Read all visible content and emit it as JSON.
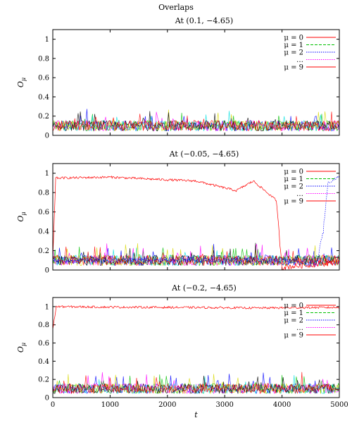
{
  "figure": {
    "title": "Overlaps"
  },
  "chart_data": [
    {
      "type": "line",
      "title": "At (0.1, −4.65)",
      "xlabel": "",
      "ylabel": "Oμ",
      "xlim": [
        0,
        5000
      ],
      "ylim": [
        0,
        1.1
      ],
      "yticks": [
        "0",
        "0.2",
        "0.4",
        "0.6",
        "0.8",
        "1"
      ],
      "xticks": [],
      "legend": "top-right",
      "series": [
        {
          "name": "μ = 0",
          "color": "#ff0000",
          "dash": "solid",
          "description_points": [
            [
              0,
              0.1
            ],
            [
              1000,
              0.1
            ],
            [
              2000,
              0.1
            ],
            [
              3000,
              0.1
            ],
            [
              4000,
              0.1
            ],
            [
              5000,
              0.1
            ]
          ]
        },
        {
          "name": "μ = 1",
          "color": "#00c000",
          "dash": "dashed",
          "description_points": [
            [
              0,
              0.1
            ],
            [
              2500,
              0.1
            ],
            [
              5000,
              0.1
            ]
          ]
        },
        {
          "name": "μ = 2",
          "color": "#0000ff",
          "dash": "dotted",
          "description_points": [
            [
              0,
              0.1
            ],
            [
              2500,
              0.1
            ],
            [
              5000,
              0.1
            ]
          ]
        },
        {
          "name": "…",
          "color": "#ff00ff",
          "dash": "dotted",
          "description_points": [
            [
              0,
              0.1
            ],
            [
              2500,
              0.1
            ],
            [
              5000,
              0.1
            ]
          ]
        },
        {
          "name": "μ = 9",
          "color": "#ff0000",
          "dash": "solid",
          "description_points": [
            [
              0,
              0.1
            ],
            [
              2500,
              0.1
            ],
            [
              5000,
              0.1
            ]
          ]
        }
      ]
    },
    {
      "type": "line",
      "title": "At (−0.05, −4.65)",
      "xlabel": "",
      "ylabel": "Oμ",
      "xlim": [
        0,
        5000
      ],
      "ylim": [
        0,
        1.1
      ],
      "yticks": [
        "0",
        "0.2",
        "0.4",
        "0.6",
        "0.8",
        "1"
      ],
      "xticks": [],
      "legend": "top-right",
      "series": [
        {
          "name": "μ = 0",
          "color": "#ff0000",
          "dash": "solid",
          "description_points": [
            [
              0,
              0.1
            ],
            [
              50,
              0.95
            ],
            [
              1000,
              0.96
            ],
            [
              1700,
              0.94
            ],
            [
              2500,
              0.92
            ],
            [
              3200,
              0.82
            ],
            [
              3500,
              0.92
            ],
            [
              3900,
              0.72
            ],
            [
              4000,
              0.03
            ],
            [
              5000,
              0.08
            ]
          ]
        },
        {
          "name": "μ = 1",
          "color": "#00c000",
          "dash": "dashed",
          "description_points": [
            [
              0,
              0.1
            ],
            [
              2500,
              0.1
            ],
            [
              5000,
              0.1
            ]
          ]
        },
        {
          "name": "μ = 2",
          "color": "#0000ff",
          "dash": "dotted",
          "description_points": [
            [
              0,
              0.1
            ],
            [
              4000,
              0.1
            ],
            [
              4600,
              0.05
            ],
            [
              4720,
              0.4
            ],
            [
              4800,
              0.9
            ],
            [
              5000,
              0.97
            ]
          ]
        },
        {
          "name": "…",
          "color": "#ff00ff",
          "dash": "dotted",
          "description_points": [
            [
              0,
              0.1
            ],
            [
              2500,
              0.1
            ],
            [
              5000,
              0.1
            ]
          ]
        },
        {
          "name": "μ = 9",
          "color": "#ff0000",
          "dash": "solid",
          "description_points": [
            [
              0,
              0.1
            ],
            [
              2500,
              0.1
            ],
            [
              5000,
              0.1
            ]
          ]
        }
      ]
    },
    {
      "type": "line",
      "title": "At (−0.2, −4.65)",
      "xlabel": "t",
      "ylabel": "Oμ",
      "xlim": [
        0,
        5000
      ],
      "ylim": [
        0,
        1.1
      ],
      "yticks": [
        "0",
        "0.2",
        "0.4",
        "0.6",
        "0.8",
        "1"
      ],
      "xticks": [
        "0",
        "1000",
        "2000",
        "3000",
        "4000",
        "5000"
      ],
      "legend": "top-right",
      "series": [
        {
          "name": "μ = 0",
          "color": "#ff0000",
          "dash": "solid",
          "description_points": [
            [
              0,
              0.75
            ],
            [
              60,
              1.0
            ],
            [
              1000,
              0.995
            ],
            [
              2500,
              0.99
            ],
            [
              3600,
              0.985
            ],
            [
              4600,
              0.99
            ],
            [
              5000,
              0.99
            ]
          ]
        },
        {
          "name": "μ = 1",
          "color": "#00c000",
          "dash": "dashed",
          "description_points": [
            [
              0,
              0.1
            ],
            [
              2500,
              0.1
            ],
            [
              5000,
              0.1
            ]
          ]
        },
        {
          "name": "μ = 2",
          "color": "#0000ff",
          "dash": "dotted",
          "description_points": [
            [
              0,
              0.1
            ],
            [
              2500,
              0.1
            ],
            [
              5000,
              0.1
            ]
          ]
        },
        {
          "name": "…",
          "color": "#ff00ff",
          "dash": "dotted",
          "description_points": [
            [
              0,
              0.1
            ],
            [
              2500,
              0.1
            ],
            [
              5000,
              0.1
            ]
          ]
        },
        {
          "name": "μ = 9",
          "color": "#ff0000",
          "dash": "solid",
          "description_points": [
            [
              0,
              0.1
            ],
            [
              2500,
              0.1
            ],
            [
              5000,
              0.1
            ]
          ]
        }
      ]
    }
  ]
}
